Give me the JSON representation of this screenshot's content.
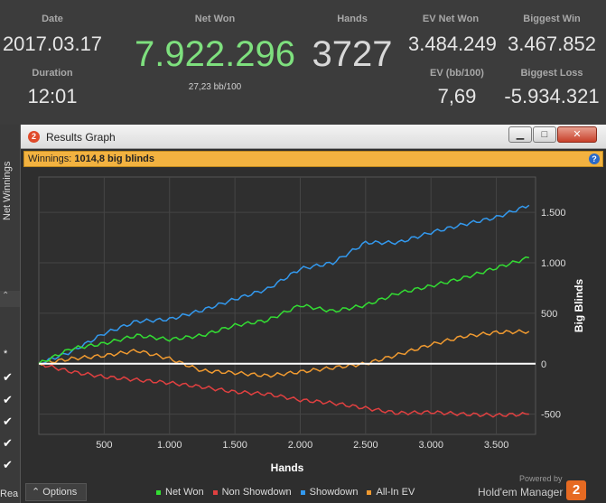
{
  "stats": {
    "date_label": "Date",
    "date_value": "2017.03.17",
    "duration_label": "Duration",
    "duration_value": "12:01",
    "net_won_label": "Net Won",
    "net_won_value": "7.922.296",
    "bb100_value": "27,23 bb/100",
    "hands_label": "Hands",
    "hands_value": "3727",
    "ev_net_won_label": "EV Net Won",
    "ev_net_won_value": "3.484.249",
    "ev_bb100_label": "EV (bb/100)",
    "ev_bb100_value": "7,69",
    "biggest_win_label": "Biggest Win",
    "biggest_win_value": "3.467.852",
    "biggest_loss_label": "Biggest Loss",
    "biggest_loss_value": "-5.934.321"
  },
  "left_panel": {
    "net_winnings_tab": "Net Winnings",
    "star": "*",
    "rea": "Rea"
  },
  "window": {
    "title": "Results Graph",
    "app_icon": "2",
    "winnings_prefix": "Winnings:",
    "winnings_value": "1014,8 big blinds",
    "help_icon": "?",
    "minimize_icon": "minimize-icon",
    "maximize_icon": "maximize-icon",
    "close_icon": "close-icon"
  },
  "bottom": {
    "options_label": "Options",
    "powered_by": "Powered by",
    "brand": "Hold'em Manager",
    "brand_badge": "2"
  },
  "colors": {
    "net_won": "#33dd33",
    "non_showdown": "#e04040",
    "showdown": "#3399ee",
    "all_in_ev": "#f09a30",
    "zero_line": "#ffffff"
  },
  "chart_data": {
    "type": "line",
    "xlabel": "Hands",
    "ylabel": "Big Blinds",
    "xlim": [
      0,
      3800
    ],
    "ylim": [
      -700,
      1850
    ],
    "x_ticks": [
      500,
      1000,
      1500,
      2000,
      2500,
      3000,
      3500
    ],
    "x_tick_labels": [
      "500",
      "1.000",
      "1.500",
      "2.000",
      "2.500",
      "3.000",
      "3.500"
    ],
    "y_ticks": [
      1500,
      1000,
      500,
      0,
      -500
    ],
    "y_tick_labels": [
      "1.500",
      "1.000",
      "500",
      "0",
      "-500"
    ],
    "grid": true,
    "legend_position": "bottom",
    "x": [
      0,
      250,
      500,
      750,
      1000,
      1250,
      1500,
      1750,
      2000,
      2250,
      2500,
      2750,
      3000,
      3250,
      3500,
      3750
    ],
    "series": [
      {
        "name": "Net Won",
        "values": [
          0,
          150,
          200,
          280,
          240,
          280,
          380,
          430,
          580,
          520,
          580,
          700,
          770,
          850,
          950,
          1050
        ]
      },
      {
        "name": "Non Showdown",
        "values": [
          0,
          -80,
          -130,
          -160,
          -190,
          -230,
          -280,
          -300,
          -360,
          -390,
          -440,
          -490,
          -480,
          -500,
          -510,
          -500
        ]
      },
      {
        "name": "Showdown",
        "values": [
          0,
          120,
          300,
          420,
          440,
          530,
          640,
          740,
          940,
          1000,
          1200,
          1200,
          1300,
          1380,
          1450,
          1570
        ]
      },
      {
        "name": "All-In EV",
        "values": [
          0,
          50,
          80,
          130,
          50,
          -70,
          -90,
          -120,
          -80,
          -40,
          0,
          90,
          190,
          270,
          310,
          320
        ]
      }
    ]
  }
}
